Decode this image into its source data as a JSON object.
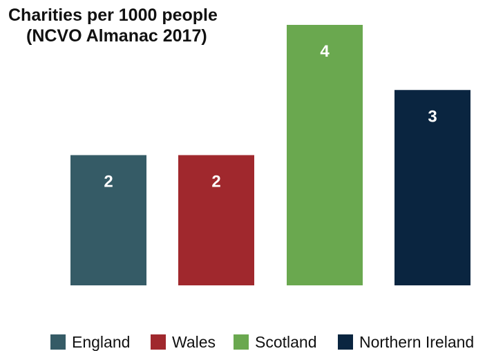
{
  "chart_data": {
    "type": "bar",
    "title": "Charities per 1000 people (NCVO Almanac 2017)",
    "title_lines": [
      "Charities per 1000 people",
      "(NCVO Almanac 2017)"
    ],
    "categories": [
      "England",
      "Wales",
      "Scotland",
      "Northern Ireland"
    ],
    "values": [
      2,
      2,
      4,
      3
    ],
    "data_labels": [
      "2",
      "2",
      "4",
      "3"
    ],
    "colors": [
      "#355b66",
      "#a0282d",
      "#6aa84f",
      "#0a2540"
    ],
    "xlabel": "",
    "ylabel": "",
    "ylim": [
      0,
      4
    ],
    "grid": false,
    "legend_position": "bottom",
    "legend": [
      "England",
      "Wales",
      "Scotland",
      "Northern Ireland"
    ]
  }
}
